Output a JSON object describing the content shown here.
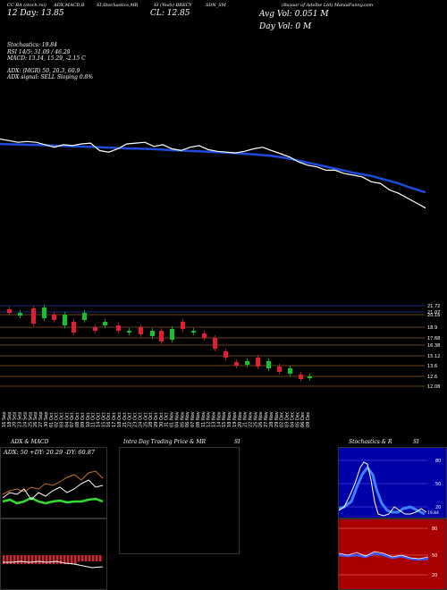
{
  "header": {
    "t1": "CC-BA (stoch.rsi)",
    "t2": "ADX,MACD,B",
    "t3": "SI,Stochastics,MR",
    "t4": "SI (Yeah) BRECY",
    "t5": "SDN_SM",
    "t6": "(Bazaar of Adelbe Ltd) ManiaFunny.com",
    "h_price": "12 Day: 13.85",
    "cl": "CL: 12.85",
    "avg_vol": "Avg Vol: 0.051 M",
    "day_vol": "Day Vol: 0  M"
  },
  "indicators": {
    "stoch": "Stochastics: 19.84",
    "rsi": "RSI 14/5: 31.09 / 46.28",
    "macd": "MACD: 13.14,  15.29,  -2.15 C",
    "adx": "ADX:                   (MGR) 50,  20.3,  60.9",
    "adx_signal": "ADX  signal: SELL  Sloping 0.8%"
  },
  "price_levels": [
    "21.72",
    "21.07",
    "20.16",
    "18.9",
    "17.68",
    "16.38",
    "15.12",
    "13.6",
    "12.6",
    "12.08"
  ],
  "dates": [
    "16 Sep",
    "18 Sep",
    "20 Sep",
    "23 Sep",
    "24 Sep",
    "25 Sep",
    "26 Sep",
    "27 Sep",
    "30 Sep",
    "01 Oct",
    "02 Oct",
    "03 Oct",
    "04 Oct",
    "07 Oct",
    "08 Oct",
    "09 Oct",
    "10 Oct",
    "11 Oct",
    "14 Oct",
    "15 Oct",
    "16 Oct",
    "17 Oct",
    "18 Oct",
    "21 Oct",
    "22 Oct",
    "23 Oct",
    "24 Oct",
    "25 Oct",
    "28 Oct",
    "29 Oct",
    "30 Oct",
    "31 Oct",
    "01 Nov",
    "04 Nov",
    "05 Nov",
    "06 Nov",
    "07 Nov",
    "08 Nov",
    "11 Nov",
    "12 Nov",
    "13 Nov",
    "14 Nov",
    "15 Nov",
    "18 Nov",
    "19 Nov",
    "20 Nov",
    "21 Nov",
    "22 Nov",
    "25 Nov",
    "26 Nov",
    "27 Nov",
    "28 Nov",
    "29 Nov",
    "02 Dec",
    "03 Dec",
    "04 Dec",
    "05 Dec",
    "06 Dec",
    "09 Dec"
  ],
  "panels": {
    "adx_macd": {
      "title": "ADX  & MACD",
      "readout": "ADX: 50  +DY: 20.29  -DY: 60.87"
    },
    "intra": {
      "title": "Intra  Day Trading Price  & MR",
      "title2": "SI"
    },
    "stoch": {
      "title": "Stochastics & R",
      "title2": "SI",
      "ticks": [
        "80",
        "50",
        "20"
      ],
      "tag": "19.84",
      "rsi_ticks": [
        "80",
        "50",
        "20"
      ]
    }
  },
  "colors": {
    "price_line": "#ffffff",
    "ma_line": "#1e4bdc",
    "bull": "#18c030",
    "bear": "#e02030",
    "level": "#d88a30",
    "blue_panel": "#0000a8",
    "red_panel": "#a80000"
  },
  "chart_data": {
    "type": "line",
    "series": [
      {
        "name": "",
        "values": [
          20.2,
          20.1,
          20.0,
          20.05,
          20.0,
          19.85,
          19.7,
          19.85,
          19.8,
          19.9,
          19.95,
          19.5,
          19.4,
          19.6,
          19.9,
          19.95,
          20.0,
          19.75,
          19.85,
          19.6,
          19.5,
          19.7,
          19.8,
          19.55,
          19.45,
          19.4,
          19.35,
          19.45,
          19.6,
          19.7,
          19.5,
          19.3,
          19.1,
          18.8,
          18.6,
          18.5,
          18.3,
          18.3,
          18.1,
          18.0,
          17.9,
          17.6,
          17.5,
          17.1,
          16.9,
          16.6,
          16.3,
          16.0
        ]
      },
      {
        "name": "",
        "values": [
          19.9,
          19.88,
          19.87,
          19.85,
          19.84,
          19.82,
          19.8,
          19.78,
          19.76,
          19.74,
          19.72,
          19.7,
          19.68,
          19.65,
          19.63,
          19.61,
          19.6,
          19.58,
          19.55,
          19.52,
          19.5,
          19.47,
          19.45,
          19.42,
          19.4,
          19.37,
          19.34,
          19.3,
          19.27,
          19.22,
          19.17,
          19.1,
          19.0,
          18.88,
          18.76,
          18.64,
          18.52,
          18.4,
          18.28,
          18.15,
          18.05,
          17.95,
          17.8,
          17.65,
          17.5,
          17.3,
          17.12,
          16.95
        ]
      }
    ]
  }
}
